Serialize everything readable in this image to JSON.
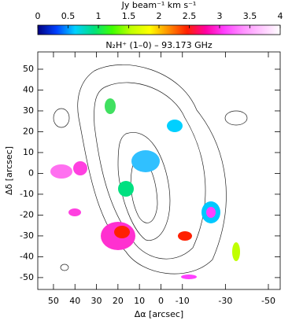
{
  "chart_data": {
    "type": "image",
    "title": "N₂H⁺ (1–0) – 93.173 GHz",
    "colorbar_label": "Jy beam⁻¹ km s⁻¹",
    "clim": [
      0,
      4
    ],
    "cticks": [
      0,
      0.5,
      1,
      1.5,
      2,
      2.5,
      3,
      3.5,
      4
    ],
    "colormap": [
      "#000080",
      "#0040ff",
      "#00d0ff",
      "#00e080",
      "#40ff00",
      "#c0ff00",
      "#ffff00",
      "#ff9000",
      "#ff2000",
      "#ff00a0",
      "#ff40ff",
      "#ff90ff",
      "#ffc8ff",
      "#ffffff"
    ],
    "x_label": "Δα [arcsec]",
    "y_label": "Δδ [arcsec]",
    "xlim": [
      57.3,
      -55.5
    ],
    "ylim": [
      -55.7,
      58.3
    ],
    "xticks": [
      50,
      40,
      30,
      20,
      10,
      0,
      -10,
      -30,
      -50
    ],
    "yticks": [
      50,
      40,
      30,
      20,
      10,
      0,
      -10,
      -20,
      -30,
      -40,
      -50
    ]
  }
}
